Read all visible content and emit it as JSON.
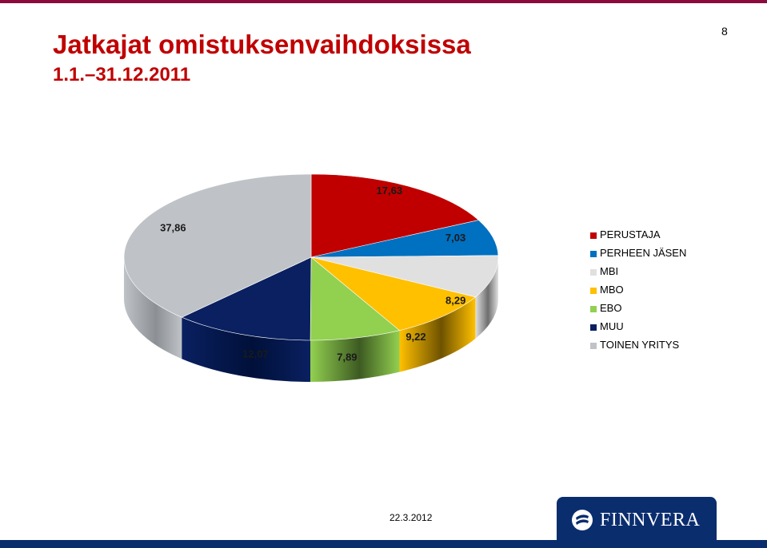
{
  "slide": {
    "title_line1": "Jatkajat omistuksenvaihdoksissa",
    "title_line2": "1.1.–31.12.2011",
    "page_number": "8",
    "footer_date": "22.3.2012",
    "brand_name": "FINNVERA",
    "accent_color": "#c00000",
    "brand_color": "#0a2d6e"
  },
  "chart_data": {
    "type": "pie",
    "style": "3d-exploded-perspective",
    "legend_position": "right",
    "start_direction": "top",
    "direction": "clockwise",
    "slices": [
      {
        "name": "PERUSTAJA",
        "value": 17.63,
        "label": "17,63",
        "color": "#c00000",
        "dark": "#7a0000"
      },
      {
        "name": "PERHEEN JÄSEN",
        "value": 7.03,
        "label": "7,03",
        "color": "#0070c0",
        "dark": "#003f6e"
      },
      {
        "name": "MBI",
        "value": 8.29,
        "label": "8,29",
        "color": "#e0e0e0",
        "dark": "#6e6e6e"
      },
      {
        "name": "MBO",
        "value": 9.22,
        "label": "9,22",
        "color": "#ffc000",
        "dark": "#6e5200"
      },
      {
        "name": "EBO",
        "value": 7.89,
        "label": "7,89",
        "color": "#92d050",
        "dark": "#3d5a22"
      },
      {
        "name": "MUU",
        "value": 12.07,
        "label": "12,07",
        "color": "#0a2060",
        "dark": "#00103a"
      },
      {
        "name": "TOINEN YRITYS",
        "value": 37.86,
        "label": "37,86",
        "color": "#bfc3c7",
        "dark": "#8c9095"
      }
    ]
  }
}
